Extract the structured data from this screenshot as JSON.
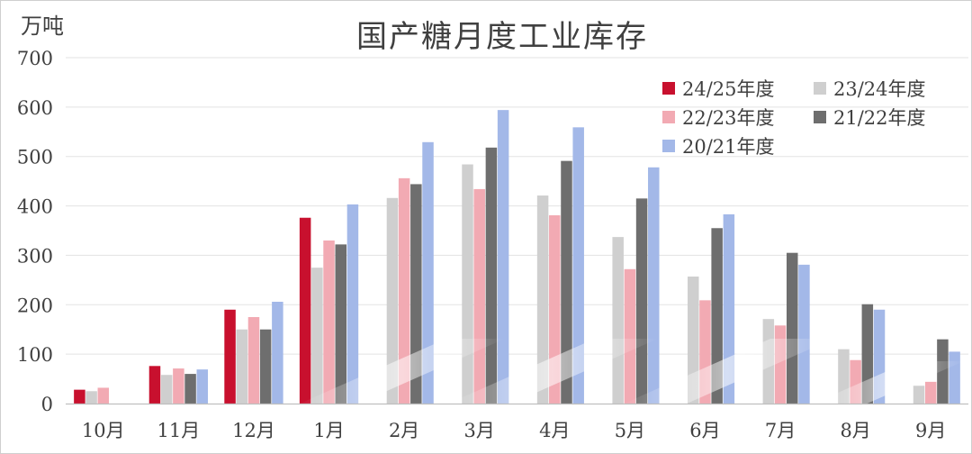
{
  "chart_data": {
    "type": "bar",
    "title": "国产糖月度工业库存",
    "ylabel": "万吨",
    "xlabel": "",
    "ylim": [
      0,
      700
    ],
    "yticks": [
      0,
      100,
      200,
      300,
      400,
      500,
      600,
      700
    ],
    "grid": true,
    "legend_position": "top-right",
    "categories": [
      "10月",
      "11月",
      "12月",
      "1月",
      "2月",
      "3月",
      "4月",
      "5月",
      "6月",
      "7月",
      "8月",
      "9月"
    ],
    "series": [
      {
        "name": "24/25年度",
        "color": "#c8102e",
        "values": [
          28,
          76,
          190,
          376,
          null,
          null,
          null,
          null,
          null,
          null,
          null,
          null
        ]
      },
      {
        "name": "23/24年度",
        "color": "#cfcfcf",
        "values": [
          25,
          58,
          150,
          275,
          416,
          484,
          421,
          337,
          257,
          171,
          110,
          36
        ]
      },
      {
        "name": "22/23年度",
        "color": "#f2aab3",
        "values": [
          32,
          71,
          175,
          330,
          456,
          434,
          381,
          272,
          209,
          158,
          88,
          44
        ]
      },
      {
        "name": "21/22年度",
        "color": "#6e6e6e",
        "values": [
          null,
          60,
          150,
          322,
          444,
          518,
          491,
          415,
          355,
          305,
          201,
          130
        ]
      },
      {
        "name": "20/21年度",
        "color": "#a3b8e8",
        "values": [
          null,
          69,
          206,
          403,
          529,
          594,
          559,
          478,
          383,
          281,
          190,
          105
        ]
      }
    ]
  }
}
